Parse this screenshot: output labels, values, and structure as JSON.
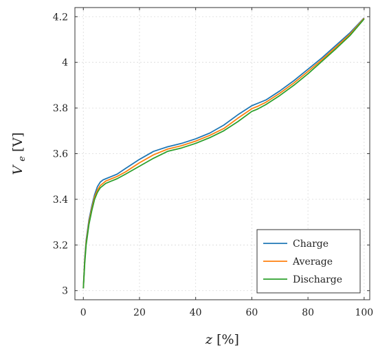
{
  "chart_data": {
    "type": "line",
    "xlabel": "z [%]",
    "ylabel": "V_e [V]",
    "xlim": [
      -3,
      102
    ],
    "ylim": [
      2.96,
      4.24
    ],
    "xticks": [
      0,
      20,
      40,
      60,
      80,
      100
    ],
    "yticks": [
      3,
      3.2,
      3.4,
      3.6,
      3.8,
      4,
      4.2
    ],
    "xtick_labels": [
      "0",
      "20",
      "40",
      "60",
      "80",
      "100"
    ],
    "ytick_labels": [
      "3",
      "3.2",
      "3.4",
      "3.6",
      "3.8",
      "4",
      "4.2"
    ],
    "grid": true,
    "legend_position": "bottom-right",
    "series": [
      {
        "name": "Charge",
        "color": "#1f77b4",
        "x": [
          0,
          0.5,
          1,
          2,
          3,
          4,
          5,
          6,
          7,
          8,
          10,
          12,
          15,
          20,
          25,
          30,
          35,
          40,
          45,
          50,
          55,
          60,
          62,
          65,
          70,
          75,
          80,
          85,
          90,
          95,
          100
        ],
        "y": [
          3.01,
          3.14,
          3.22,
          3.31,
          3.37,
          3.42,
          3.455,
          3.475,
          3.485,
          3.49,
          3.5,
          3.51,
          3.535,
          3.575,
          3.61,
          3.63,
          3.645,
          3.665,
          3.69,
          3.725,
          3.77,
          3.81,
          3.82,
          3.835,
          3.875,
          3.92,
          3.97,
          4.02,
          4.075,
          4.13,
          4.195
        ]
      },
      {
        "name": "Average",
        "color": "#ff7f0e",
        "x": [
          0,
          0.5,
          1,
          2,
          3,
          4,
          5,
          6,
          7,
          8,
          10,
          12,
          15,
          20,
          25,
          30,
          35,
          40,
          45,
          50,
          55,
          60,
          62,
          65,
          70,
          75,
          80,
          85,
          90,
          95,
          100
        ],
        "y": [
          3.01,
          3.13,
          3.21,
          3.3,
          3.36,
          3.41,
          3.44,
          3.46,
          3.47,
          3.48,
          3.49,
          3.5,
          3.52,
          3.56,
          3.595,
          3.62,
          3.635,
          3.655,
          3.68,
          3.71,
          3.755,
          3.797,
          3.807,
          3.825,
          3.865,
          3.91,
          3.96,
          4.012,
          4.067,
          4.124,
          4.193
        ]
      },
      {
        "name": "Discharge",
        "color": "#2ca02c",
        "x": [
          0,
          0.5,
          1,
          2,
          3,
          4,
          5,
          6,
          7,
          8,
          10,
          12,
          15,
          20,
          25,
          30,
          35,
          40,
          45,
          50,
          55,
          60,
          62,
          65,
          70,
          75,
          80,
          85,
          90,
          95,
          100
        ],
        "y": [
          3.01,
          3.12,
          3.2,
          3.29,
          3.35,
          3.4,
          3.43,
          3.45,
          3.46,
          3.47,
          3.48,
          3.49,
          3.51,
          3.545,
          3.58,
          3.61,
          3.625,
          3.645,
          3.67,
          3.7,
          3.74,
          3.785,
          3.795,
          3.815,
          3.855,
          3.9,
          3.95,
          4.005,
          4.06,
          4.118,
          4.19
        ]
      }
    ]
  }
}
